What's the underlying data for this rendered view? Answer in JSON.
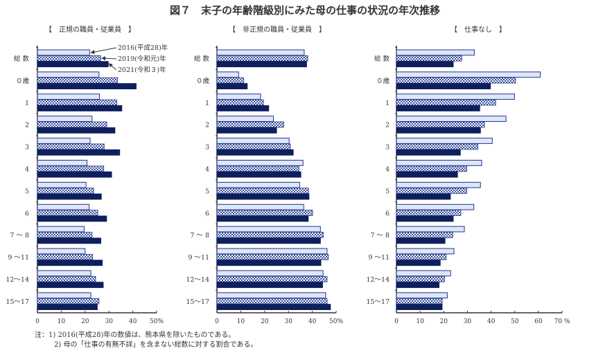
{
  "title": "図７　末子の年齢階級別にみた母の仕事の状況の年次推移",
  "notes": [
    "注：1)  2016(平成28)年の数値は、熊本県を除いたものである。",
    "2)  母の「仕事の有無不詳」を含まない総数に対する割合である。"
  ],
  "colors": {
    "2016": "#dce7f7",
    "2016_border": "#2b2f8f",
    "2019": "#3a4f9a",
    "2021": "#0e1f5e"
  },
  "chart_data": [
    {
      "type": "bar",
      "orientation": "horizontal",
      "title": "【　正規の職員・従業員　】",
      "categories": [
        "総 数",
        "０歳",
        "1",
        "2",
        "3",
        "4",
        "5",
        "6",
        "7 ～ 8",
        "9 ～11",
        "12～14",
        "15～17"
      ],
      "xlim": [
        0,
        50
      ],
      "xticks": [
        "0",
        "10",
        "20",
        "30",
        "40",
        "50%"
      ],
      "legend_placement": "annotated arrows, top-right of panel",
      "series": [
        {
          "name": "2016(平成28)年",
          "values": [
            21.9,
            25.8,
            26.0,
            22.9,
            22.1,
            20.8,
            20.4,
            21.7,
            19.6,
            20.0,
            22.4,
            22.4
          ]
        },
        {
          "name": "2019(令和元)年",
          "values": [
            26.5,
            33.6,
            33.3,
            29.1,
            28.0,
            27.8,
            23.6,
            25.3,
            22.9,
            23.1,
            24.4,
            25.8
          ]
        },
        {
          "name": "2021(令和３)年",
          "values": [
            29.7,
            41.4,
            35.4,
            32.5,
            34.5,
            31.1,
            26.8,
            29.0,
            26.6,
            27.2,
            27.6,
            25.1
          ]
        }
      ]
    },
    {
      "type": "bar",
      "orientation": "horizontal",
      "title": "【　非正規の職員・従業員　】",
      "categories": [
        "総 数",
        "０歳",
        "1",
        "2",
        "3",
        "4",
        "5",
        "6",
        "7 ～ 8",
        "9 ～11",
        "12～14",
        "15～17"
      ],
      "xlim": [
        0,
        50
      ],
      "xticks": [
        "0",
        "10",
        "20",
        "30",
        "40",
        "50%"
      ],
      "series": [
        {
          "values": [
            36.6,
            9.1,
            18.3,
            23.7,
            30.3,
            36.1,
            34.7,
            36.4,
            43.4,
            46.2,
            44.5,
            45.6
          ]
        },
        {
          "values": [
            38.1,
            11.2,
            19.5,
            28.0,
            30.8,
            34.4,
            38.4,
            40.1,
            44.6,
            46.7,
            46.2,
            46.2
          ]
        },
        {
          "values": [
            37.6,
            12.7,
            21.7,
            25.0,
            32.0,
            35.2,
            38.6,
            38.3,
            43.4,
            43.6,
            44.3,
            47.6
          ]
        }
      ]
    },
    {
      "type": "bar",
      "orientation": "horizontal",
      "title": "【　仕事なし　】",
      "categories": [
        "総 数",
        "０歳",
        "1",
        "2",
        "3",
        "4",
        "5",
        "6",
        "7 ～ 8",
        "9 ～11",
        "12～14",
        "15～17"
      ],
      "xlim": [
        0,
        70
      ],
      "xticks": [
        "0",
        "10",
        "20",
        "30",
        "40",
        "50",
        "60",
        "70 %"
      ],
      "series": [
        {
          "values": [
            32.9,
            60.8,
            49.9,
            46.3,
            40.5,
            36.0,
            35.5,
            32.7,
            28.7,
            24.3,
            22.9,
            21.5
          ]
        },
        {
          "values": [
            27.6,
            50.3,
            41.9,
            37.2,
            34.4,
            29.7,
            29.7,
            27.2,
            23.8,
            21.0,
            20.3,
            19.3
          ]
        },
        {
          "values": [
            24.0,
            39.7,
            35.2,
            35.5,
            27.0,
            25.8,
            22.8,
            24.0,
            20.5,
            18.5,
            18.0,
            19.3
          ]
        }
      ]
    }
  ]
}
